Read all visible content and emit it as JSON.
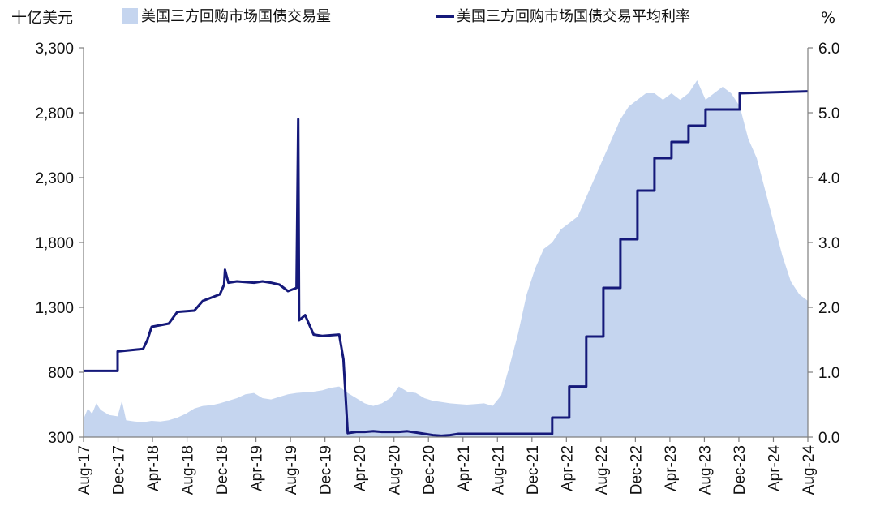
{
  "chart_data": {
    "type": "area+line",
    "left_axis": {
      "unit": "十亿美元",
      "ylim": [
        300,
        3300
      ],
      "ticks": [
        "300",
        "800",
        "1,300",
        "1,800",
        "2,300",
        "2,800",
        "3,300"
      ]
    },
    "right_axis": {
      "unit": "%",
      "ylim": [
        0.0,
        6.0
      ],
      "ticks": [
        "0.0",
        "1.0",
        "2.0",
        "3.0",
        "4.0",
        "5.0",
        "6.0"
      ]
    },
    "x_ticks": [
      "Aug-17",
      "Dec-17",
      "Apr-18",
      "Aug-18",
      "Dec-18",
      "Apr-19",
      "Aug-19",
      "Dec-19",
      "Apr-20",
      "Aug-20",
      "Dec-20",
      "Apr-21",
      "Aug-21",
      "Dec-21",
      "Apr-22",
      "Aug-22",
      "Dec-22",
      "Apr-23",
      "Aug-23",
      "Dec-23",
      "Apr-24",
      "Aug-24"
    ],
    "x_range": [
      0,
      85
    ],
    "grid": false,
    "legend_position": "top",
    "series": [
      {
        "name": "美国三方回购市场国债交易量",
        "kind": "area",
        "axis": "left",
        "color": "#c5d5ef",
        "points": [
          [
            0,
            440
          ],
          [
            0.5,
            520
          ],
          [
            1,
            480
          ],
          [
            1.5,
            560
          ],
          [
            2,
            510
          ],
          [
            3,
            470
          ],
          [
            4,
            460
          ],
          [
            4.5,
            580
          ],
          [
            5,
            430
          ],
          [
            6,
            420
          ],
          [
            7,
            415
          ],
          [
            8,
            425
          ],
          [
            9,
            420
          ],
          [
            10,
            430
          ],
          [
            11,
            450
          ],
          [
            12,
            480
          ],
          [
            13,
            520
          ],
          [
            14,
            540
          ],
          [
            15,
            545
          ],
          [
            16,
            560
          ],
          [
            17,
            580
          ],
          [
            18,
            600
          ],
          [
            19,
            630
          ],
          [
            20,
            640
          ],
          [
            21,
            600
          ],
          [
            22,
            590
          ],
          [
            23,
            610
          ],
          [
            24,
            630
          ],
          [
            25,
            640
          ],
          [
            26,
            645
          ],
          [
            27,
            650
          ],
          [
            28,
            660
          ],
          [
            29,
            680
          ],
          [
            30,
            690
          ],
          [
            31,
            640
          ],
          [
            32,
            600
          ],
          [
            33,
            560
          ],
          [
            34,
            540
          ],
          [
            35,
            560
          ],
          [
            36,
            600
          ],
          [
            37,
            690
          ],
          [
            38,
            650
          ],
          [
            39,
            640
          ],
          [
            40,
            600
          ],
          [
            41,
            580
          ],
          [
            42,
            570
          ],
          [
            43,
            560
          ],
          [
            44,
            555
          ],
          [
            45,
            550
          ],
          [
            46,
            555
          ],
          [
            47,
            560
          ],
          [
            48,
            540
          ],
          [
            49,
            620
          ],
          [
            50,
            850
          ],
          [
            51,
            1100
          ],
          [
            52,
            1400
          ],
          [
            53,
            1600
          ],
          [
            54,
            1750
          ],
          [
            55,
            1800
          ],
          [
            56,
            1900
          ],
          [
            57,
            1950
          ],
          [
            58,
            2000
          ],
          [
            59,
            2150
          ],
          [
            60,
            2300
          ],
          [
            61,
            2450
          ],
          [
            62,
            2600
          ],
          [
            63,
            2750
          ],
          [
            64,
            2850
          ],
          [
            65,
            2900
          ],
          [
            66,
            2950
          ],
          [
            67,
            2950
          ],
          [
            68,
            2900
          ],
          [
            69,
            2950
          ],
          [
            70,
            2900
          ],
          [
            71,
            2950
          ],
          [
            72,
            3050
          ],
          [
            73,
            2900
          ],
          [
            74,
            2950
          ],
          [
            75,
            3000
          ],
          [
            76,
            2950
          ],
          [
            77,
            2850
          ],
          [
            78,
            2600
          ],
          [
            79,
            2450
          ],
          [
            80,
            2200
          ],
          [
            81,
            1950
          ],
          [
            82,
            1700
          ],
          [
            83,
            1500
          ],
          [
            84,
            1400
          ],
          [
            85,
            1350
          ]
        ]
      },
      {
        "name": "美国三方回购市场国债交易平均利率",
        "kind": "line",
        "axis": "right",
        "color": "#15197a",
        "points": [
          [
            0,
            1.02
          ],
          [
            4,
            1.02
          ],
          [
            4,
            1.32
          ],
          [
            7,
            1.36
          ],
          [
            7.5,
            1.5
          ],
          [
            8,
            1.7
          ],
          [
            10,
            1.75
          ],
          [
            11,
            1.93
          ],
          [
            13,
            1.95
          ],
          [
            14,
            2.1
          ],
          [
            15,
            2.15
          ],
          [
            16,
            2.2
          ],
          [
            16.5,
            2.35
          ],
          [
            16.6,
            2.58
          ],
          [
            17,
            2.38
          ],
          [
            18,
            2.4
          ],
          [
            20,
            2.38
          ],
          [
            21,
            2.4
          ],
          [
            22,
            2.38
          ],
          [
            23,
            2.35
          ],
          [
            24,
            2.25
          ],
          [
            25,
            2.3
          ],
          [
            25.2,
            4.9
          ],
          [
            25.3,
            1.8
          ],
          [
            26,
            1.88
          ],
          [
            27,
            1.58
          ],
          [
            28,
            1.56
          ],
          [
            30,
            1.58
          ],
          [
            30.5,
            1.2
          ],
          [
            31,
            0.06
          ],
          [
            32,
            0.08
          ],
          [
            33,
            0.08
          ],
          [
            34,
            0.09
          ],
          [
            35,
            0.08
          ],
          [
            36,
            0.08
          ],
          [
            37,
            0.08
          ],
          [
            38,
            0.09
          ],
          [
            39,
            0.07
          ],
          [
            40,
            0.05
          ],
          [
            41,
            0.03
          ],
          [
            42,
            0.02
          ],
          [
            43,
            0.03
          ],
          [
            44,
            0.05
          ],
          [
            45,
            0.05
          ],
          [
            46,
            0.05
          ],
          [
            47,
            0.05
          ],
          [
            49,
            0.05
          ],
          [
            55,
            0.05
          ],
          [
            55,
            0.3
          ],
          [
            57,
            0.3
          ],
          [
            57,
            0.78
          ],
          [
            59,
            0.78
          ],
          [
            59,
            1.55
          ],
          [
            61,
            1.55
          ],
          [
            61,
            2.3
          ],
          [
            63,
            2.3
          ],
          [
            63,
            3.05
          ],
          [
            65,
            3.05
          ],
          [
            65,
            3.8
          ],
          [
            67,
            3.8
          ],
          [
            67,
            4.3
          ],
          [
            69,
            4.3
          ],
          [
            69,
            4.55
          ],
          [
            71,
            4.55
          ],
          [
            71,
            4.8
          ],
          [
            73,
            4.8
          ],
          [
            73,
            5.05
          ],
          [
            77,
            5.05
          ],
          [
            77,
            5.3
          ],
          [
            85,
            5.33
          ]
        ]
      }
    ]
  }
}
